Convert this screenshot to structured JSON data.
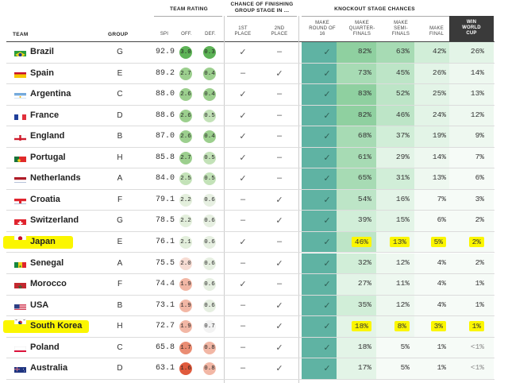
{
  "header": {
    "team_rating": "TEAM RATING",
    "group_stage_line1": "CHANCE OF FINISHING",
    "group_stage_line2": "GROUP STAGE IN ...",
    "knockout": "KNOCKOUT STAGE CHANCES",
    "col_team": "TEAM",
    "col_group": "GROUP",
    "col_spi": "SPI",
    "col_off": "OFF.",
    "col_def": "DEF.",
    "col_1st_l1": "1ST",
    "col_1st_l2": "PLACE",
    "col_2nd_l1": "2ND",
    "col_2nd_l2": "PLACE",
    "col_r16_l1": "MAKE",
    "col_r16_l2": "ROUND OF",
    "col_r16_l3": "16",
    "col_qf_l1": "MAKE",
    "col_qf_l2": "QUARTER-",
    "col_qf_l3": "FINALS",
    "col_sf_l1": "MAKE",
    "col_sf_l2": "SEMI-",
    "col_sf_l3": "FINALS",
    "col_f_l1": "MAKE",
    "col_f_l2": "FINAL",
    "col_w_l1": "WIN",
    "col_w_l2": "WORLD",
    "col_w_l3": "CUP"
  },
  "symbols": {
    "check": "✓",
    "dash": "–"
  },
  "colors": {
    "r16_bg": "#5fb3a3",
    "knockout_scale": [
      "#ffffff",
      "#dff1e6",
      "#c3e6cd",
      "#a8dbb5",
      "#8ccf9b"
    ],
    "highlight": "#fbf600",
    "off_scale_good": "#6dbb62",
    "def_scale_bad": "#e05a3c"
  },
  "chart_data": {
    "type": "table",
    "columns": [
      "Team",
      "Group",
      "SPI",
      "Off.",
      "Def.",
      "1st place",
      "2nd place",
      "Make round of 16",
      "Make quarter-finals",
      "Make semi-finals",
      "Make final",
      "Win World Cup"
    ],
    "rows": [
      {
        "team": "Brazil",
        "flag": "brazil",
        "group": "G",
        "spi": "92.9",
        "off": "3.0",
        "def": "0.3",
        "first": "check",
        "second": "dash",
        "r16": "check",
        "qf": "82%",
        "sf": "63%",
        "f": "42%",
        "win": "26%",
        "highlight": false
      },
      {
        "team": "Spain",
        "flag": "spain",
        "group": "E",
        "spi": "89.2",
        "off": "2.7",
        "def": "0.4",
        "first": "dash",
        "second": "check",
        "r16": "check",
        "qf": "73%",
        "sf": "45%",
        "f": "26%",
        "win": "14%",
        "highlight": false
      },
      {
        "team": "Argentina",
        "flag": "argentina",
        "group": "C",
        "spi": "88.0",
        "off": "2.6",
        "def": "0.4",
        "first": "check",
        "second": "dash",
        "r16": "check",
        "qf": "83%",
        "sf": "52%",
        "f": "25%",
        "win": "13%",
        "highlight": false
      },
      {
        "team": "France",
        "flag": "france",
        "group": "D",
        "spi": "88.6",
        "off": "2.6",
        "def": "0.5",
        "first": "check",
        "second": "dash",
        "r16": "check",
        "qf": "82%",
        "sf": "46%",
        "f": "24%",
        "win": "12%",
        "highlight": false
      },
      {
        "team": "England",
        "flag": "england",
        "group": "B",
        "spi": "87.0",
        "off": "2.6",
        "def": "0.4",
        "first": "check",
        "second": "dash",
        "r16": "check",
        "qf": "68%",
        "sf": "37%",
        "f": "19%",
        "win": "9%",
        "highlight": false
      },
      {
        "team": "Portugal",
        "flag": "portugal",
        "group": "H",
        "spi": "85.8",
        "off": "2.7",
        "def": "0.5",
        "first": "check",
        "second": "dash",
        "r16": "check",
        "qf": "61%",
        "sf": "29%",
        "f": "14%",
        "win": "7%",
        "highlight": false
      },
      {
        "team": "Netherlands",
        "flag": "netherlands",
        "group": "A",
        "spi": "84.0",
        "off": "2.5",
        "def": "0.5",
        "first": "check",
        "second": "dash",
        "r16": "check",
        "qf": "65%",
        "sf": "31%",
        "f": "13%",
        "win": "6%",
        "highlight": false
      },
      {
        "team": "Croatia",
        "flag": "croatia",
        "group": "F",
        "spi": "79.1",
        "off": "2.2",
        "def": "0.6",
        "first": "dash",
        "second": "check",
        "r16": "check",
        "qf": "54%",
        "sf": "16%",
        "f": "7%",
        "win": "3%",
        "highlight": false
      },
      {
        "team": "Switzerland",
        "flag": "switzerland",
        "group": "G",
        "spi": "78.5",
        "off": "2.2",
        "def": "0.6",
        "first": "dash",
        "second": "check",
        "r16": "check",
        "qf": "39%",
        "sf": "15%",
        "f": "6%",
        "win": "2%",
        "highlight": false
      },
      {
        "team": "Japan",
        "flag": "japan",
        "group": "E",
        "spi": "76.1",
        "off": "2.1",
        "def": "0.6",
        "first": "check",
        "second": "dash",
        "r16": "check",
        "qf": "46%",
        "sf": "13%",
        "f": "5%",
        "win": "2%",
        "highlight": true
      },
      {
        "team": "Senegal",
        "flag": "senegal",
        "group": "A",
        "spi": "75.5",
        "off": "2.0",
        "def": "0.6",
        "first": "dash",
        "second": "check",
        "r16": "check",
        "qf": "32%",
        "sf": "12%",
        "f": "4%",
        "win": "2%",
        "highlight": false
      },
      {
        "team": "Morocco",
        "flag": "morocco",
        "group": "F",
        "spi": "74.4",
        "off": "1.9",
        "def": "0.6",
        "first": "check",
        "second": "dash",
        "r16": "check",
        "qf": "27%",
        "sf": "11%",
        "f": "4%",
        "win": "1%",
        "highlight": false
      },
      {
        "team": "USA",
        "flag": "usa",
        "group": "B",
        "spi": "73.1",
        "off": "1.9",
        "def": "0.6",
        "first": "dash",
        "second": "check",
        "r16": "check",
        "qf": "35%",
        "sf": "12%",
        "f": "4%",
        "win": "1%",
        "highlight": false
      },
      {
        "team": "South Korea",
        "flag": "southkorea",
        "group": "H",
        "spi": "72.7",
        "off": "1.9",
        "def": "0.7",
        "first": "dash",
        "second": "check",
        "r16": "check",
        "qf": "18%",
        "sf": "8%",
        "f": "3%",
        "win": "1%",
        "highlight": true
      },
      {
        "team": "Poland",
        "flag": "poland",
        "group": "C",
        "spi": "65.8",
        "off": "1.7",
        "def": "0.8",
        "first": "dash",
        "second": "check",
        "r16": "check",
        "qf": "18%",
        "sf": "5%",
        "f": "1%",
        "win": "<1%",
        "highlight": false
      },
      {
        "team": "Australia",
        "flag": "australia",
        "group": "D",
        "spi": "63.1",
        "off": "1.6",
        "def": "0.8",
        "first": "dash",
        "second": "check",
        "r16": "check",
        "qf": "17%",
        "sf": "5%",
        "f": "1%",
        "win": "<1%",
        "highlight": false
      }
    ]
  }
}
